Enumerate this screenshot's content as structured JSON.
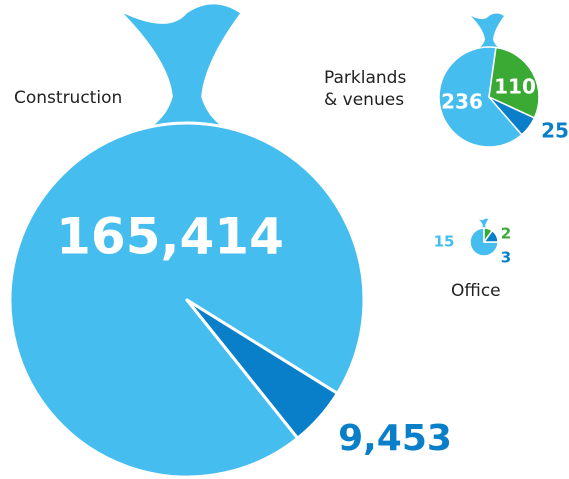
{
  "chart_data": [
    {
      "type": "pie",
      "title": "Construction",
      "values": [
        165414,
        9453
      ],
      "value_labels": [
        "165,414",
        "9,453"
      ],
      "colors": [
        "#45bdee",
        "#0a7fc9"
      ]
    },
    {
      "type": "pie",
      "title": "Parklands & venues",
      "values": [
        236,
        110,
        25
      ],
      "colors": [
        "#45bdee",
        "#3aaa35",
        "#0a7fc9"
      ]
    },
    {
      "type": "pie",
      "title": "Office",
      "values": [
        15,
        2,
        3
      ],
      "colors": [
        "#45bdee",
        "#3aaa35",
        "#0a7fc9"
      ]
    }
  ]
}
